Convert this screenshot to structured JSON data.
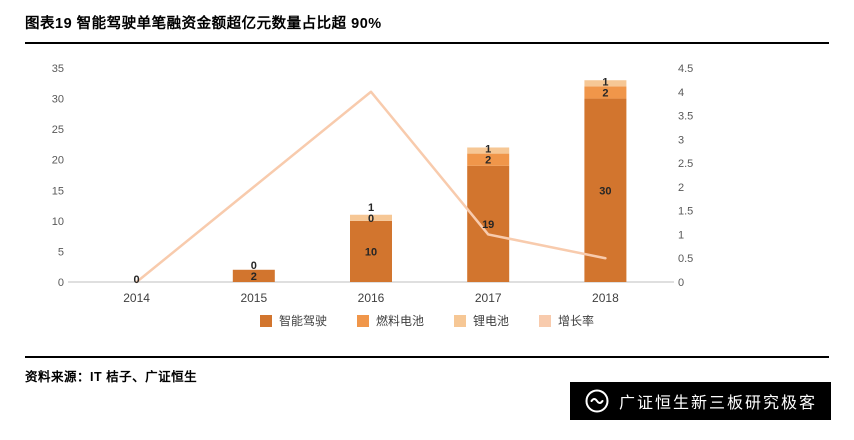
{
  "page": {
    "title": "图表19 智能驾驶单笔融资金额超亿元数量占比超 90%",
    "source_label": "资料来源：IT 桔子、广证恒生",
    "watermark": "广证恒生新三板研究极客"
  },
  "chart_data": {
    "type": "bar",
    "stacked": true,
    "title": "图表19 智能驾驶单笔融资金额超亿元数量占比超 90%",
    "categories": [
      "2014",
      "2015",
      "2016",
      "2017",
      "2018"
    ],
    "series": [
      {
        "name": "智能驾驶",
        "color": "#D2752E",
        "values": [
          0,
          2,
          10,
          19,
          30
        ]
      },
      {
        "name": "燃料电池",
        "color": "#F0964A",
        "values": [
          0,
          0,
          0,
          2,
          2
        ]
      },
      {
        "name": "锂电池",
        "color": "#F6C795",
        "values": [
          0,
          0,
          1,
          1,
          1
        ]
      }
    ],
    "line": {
      "name": "增长率",
      "color": "#F8CBAD",
      "values": [
        0,
        2,
        4,
        1,
        0.5
      ],
      "axis": "right"
    },
    "left_axis": {
      "min": 0,
      "max": 35,
      "ticks": [
        0,
        5,
        10,
        15,
        20,
        25,
        30,
        35
      ]
    },
    "right_axis": {
      "min": 0,
      "max": 4.5,
      "ticks": [
        0,
        0.5,
        1,
        1.5,
        2,
        2.5,
        3,
        3.5,
        4,
        4.5
      ]
    },
    "legend_position": "bottom",
    "grid": false
  }
}
